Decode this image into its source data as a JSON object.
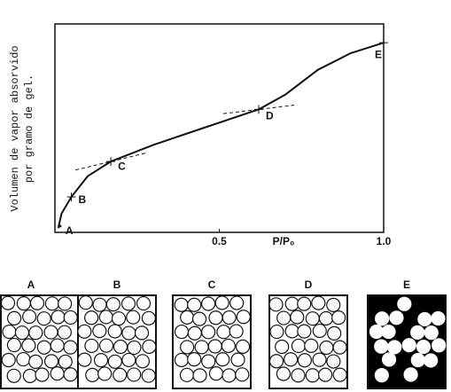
{
  "chart_data": {
    "type": "line",
    "y_label": [
      "Volumen de vapor absorvido",
      "por gramo de gel."
    ],
    "x_label": "P/P₀",
    "xlim": [
      0,
      1
    ],
    "xticks": [
      0.5,
      {
        "value": 1,
        "label": "1.0"
      }
    ],
    "ylim": [
      0,
      100
    ],
    "x": [
      0.01,
      0.02,
      0.05,
      0.1,
      0.17,
      0.3,
      0.45,
      0.62,
      0.7,
      0.8,
      0.9,
      1.0
    ],
    "values": [
      2,
      9,
      17,
      27,
      34,
      42,
      50,
      59,
      66,
      78,
      86,
      91
    ],
    "color": "#111111",
    "points": {
      "labels": [
        "A",
        "B",
        "C",
        "D",
        "E"
      ],
      "x": [
        0.016,
        0.05,
        0.17,
        0.62,
        1.0
      ],
      "y": [
        3,
        17,
        34,
        59,
        91
      ]
    },
    "panels": [
      "A",
      "B",
      "C",
      "D",
      "E"
    ]
  }
}
